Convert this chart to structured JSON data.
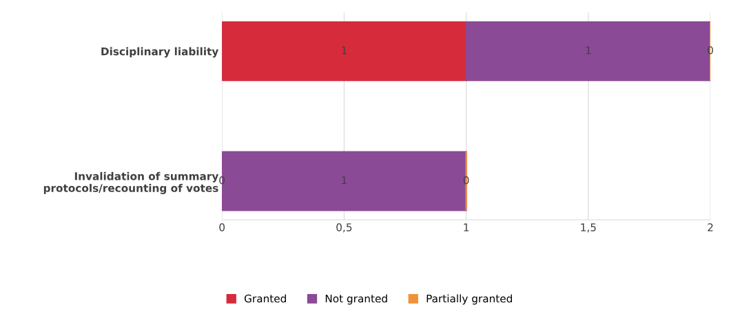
{
  "chart_data": {
    "type": "bar",
    "orientation": "horizontal",
    "stacked": true,
    "categories": [
      "Disciplinary liability",
      "Invalidation of summary\nprotocols/recounting of votes"
    ],
    "series": [
      {
        "name": "Granted",
        "color": "#d62b3b",
        "values": [
          1,
          0
        ]
      },
      {
        "name": "Not granted",
        "color": "#8a4a96",
        "values": [
          1,
          1
        ]
      },
      {
        "name": "Partially granted",
        "color": "#f0923a",
        "values": [
          0,
          0
        ]
      }
    ],
    "xlim": [
      0,
      2
    ],
    "xticks": [
      0,
      {
        "value": 0.5,
        "label": "0,5"
      },
      1,
      {
        "value": 1.5,
        "label": "1,5"
      },
      2
    ],
    "grid": "x",
    "legend": "bottom",
    "data_labels": true
  }
}
